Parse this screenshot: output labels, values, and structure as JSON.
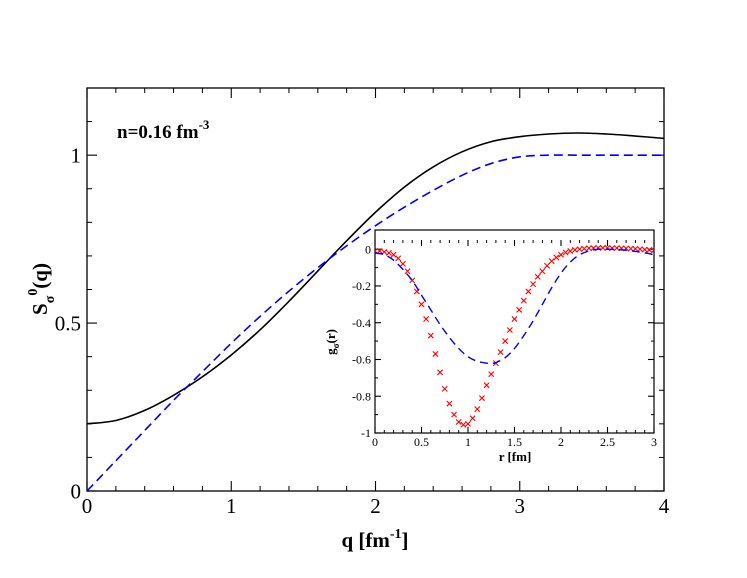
{
  "chart_data": [
    {
      "type": "line",
      "title": "",
      "annotation": {
        "text": "n=0.16 fm",
        "superscript": "-3"
      },
      "xlabel": {
        "text": "q [fm",
        "superscript": "-1",
        "suffix": "]"
      },
      "ylabel": {
        "base": "S",
        "subscript": "σ",
        "superscript": "0",
        "suffix": "(q)"
      },
      "xlim": [
        0,
        4
      ],
      "ylim": [
        0,
        1.2
      ],
      "xticks": [
        0,
        1,
        2,
        3,
        4
      ],
      "xtick_labels": [
        "0",
        "1",
        "2",
        "3",
        "4"
      ],
      "yticks": [
        0,
        0.5,
        1
      ],
      "ytick_labels": [
        "0",
        "0.5",
        "1"
      ],
      "grid": false,
      "series": [
        {
          "name": "solid",
          "style": "solid",
          "color": "#000000",
          "x": [
            0,
            0.2,
            0.4,
            0.6,
            0.8,
            1.0,
            1.2,
            1.4,
            1.6,
            1.8,
            2.0,
            2.2,
            2.4,
            2.6,
            2.8,
            3.0,
            3.2,
            3.4,
            3.6,
            3.8,
            4.0
          ],
          "y": [
            0.2,
            0.21,
            0.24,
            0.285,
            0.34,
            0.405,
            0.48,
            0.565,
            0.655,
            0.745,
            0.83,
            0.905,
            0.965,
            1.01,
            1.04,
            1.055,
            1.063,
            1.066,
            1.063,
            1.057,
            1.05
          ]
        },
        {
          "name": "dashed",
          "style": "dashed",
          "color": "#0000ee",
          "x": [
            0,
            0.2,
            0.4,
            0.6,
            0.8,
            1.0,
            1.2,
            1.4,
            1.6,
            1.8,
            2.0,
            2.2,
            2.4,
            2.6,
            2.8,
            3.0,
            3.2,
            3.4,
            3.6,
            3.8,
            4.0
          ],
          "y": [
            0,
            0.09,
            0.18,
            0.27,
            0.355,
            0.44,
            0.52,
            0.595,
            0.665,
            0.73,
            0.79,
            0.845,
            0.895,
            0.94,
            0.975,
            0.995,
            1.0,
            1.0,
            1.0,
            1.0,
            1.0
          ]
        }
      ]
    },
    {
      "type": "line",
      "title": "",
      "xlabel": {
        "text": "r [fm]"
      },
      "ylabel": {
        "base": "g",
        "subscript": "σ",
        "suffix": "(r)"
      },
      "xlim": [
        0,
        3
      ],
      "ylim": [
        -1,
        0.05
      ],
      "xticks": [
        0,
        0.5,
        1,
        1.5,
        2,
        2.5,
        3
      ],
      "xtick_labels": [
        "0",
        "0.5",
        "1",
        "1.5",
        "2",
        "2.5",
        "3"
      ],
      "yticks": [
        0,
        -0.2,
        -0.4,
        -0.6,
        -0.8,
        -1
      ],
      "ytick_labels": [
        "0",
        "-0.2",
        "-0.4",
        "-0.6",
        "-0.8",
        "-1"
      ],
      "grid": false,
      "series": [
        {
          "name": "points",
          "style": "markers",
          "marker": "x",
          "color": "#ff0000",
          "x": [
            0,
            0.05,
            0.1,
            0.15,
            0.2,
            0.25,
            0.3,
            0.35,
            0.4,
            0.45,
            0.5,
            0.55,
            0.6,
            0.65,
            0.7,
            0.75,
            0.8,
            0.85,
            0.9,
            0.95,
            1.0,
            1.05,
            1.1,
            1.15,
            1.2,
            1.25,
            1.3,
            1.35,
            1.4,
            1.45,
            1.5,
            1.55,
            1.6,
            1.65,
            1.7,
            1.75,
            1.8,
            1.85,
            1.9,
            1.95,
            2.0,
            2.05,
            2.1,
            2.15,
            2.2,
            2.25,
            2.3,
            2.35,
            2.4,
            2.45,
            2.5,
            2.55,
            2.6,
            2.65,
            2.7,
            2.75,
            2.8,
            2.85,
            2.9,
            2.95,
            3.0
          ],
          "y": [
            -0.01,
            -0.01,
            -0.015,
            -0.02,
            -0.03,
            -0.05,
            -0.08,
            -0.12,
            -0.17,
            -0.23,
            -0.3,
            -0.38,
            -0.47,
            -0.57,
            -0.67,
            -0.76,
            -0.84,
            -0.9,
            -0.94,
            -0.955,
            -0.95,
            -0.92,
            -0.87,
            -0.81,
            -0.74,
            -0.68,
            -0.62,
            -0.56,
            -0.5,
            -0.44,
            -0.38,
            -0.33,
            -0.28,
            -0.23,
            -0.19,
            -0.15,
            -0.12,
            -0.09,
            -0.065,
            -0.045,
            -0.03,
            -0.018,
            -0.01,
            -0.004,
            0.0,
            0.003,
            0.005,
            0.006,
            0.007,
            0.007,
            0.007,
            0.006,
            0.006,
            0.005,
            0.004,
            0.003,
            0.002,
            0.0,
            -0.002,
            -0.004,
            -0.006
          ]
        },
        {
          "name": "dashed",
          "style": "dashed",
          "color": "#0000ee",
          "x": [
            0,
            0.1,
            0.2,
            0.3,
            0.4,
            0.5,
            0.6,
            0.7,
            0.8,
            0.9,
            1.0,
            1.1,
            1.2,
            1.25,
            1.3,
            1.4,
            1.5,
            1.6,
            1.7,
            1.8,
            1.9,
            2.0,
            2.1,
            2.2,
            2.3,
            2.4,
            2.5,
            2.6,
            2.7,
            2.8,
            2.9,
            3.0
          ],
          "y": [
            -0.02,
            -0.03,
            -0.06,
            -0.11,
            -0.17,
            -0.25,
            -0.33,
            -0.41,
            -0.48,
            -0.54,
            -0.585,
            -0.61,
            -0.62,
            -0.622,
            -0.617,
            -0.59,
            -0.54,
            -0.47,
            -0.39,
            -0.3,
            -0.21,
            -0.13,
            -0.07,
            -0.03,
            -0.01,
            0.0,
            0.0,
            -0.002,
            -0.006,
            -0.012,
            -0.02,
            -0.03
          ]
        }
      ]
    }
  ]
}
